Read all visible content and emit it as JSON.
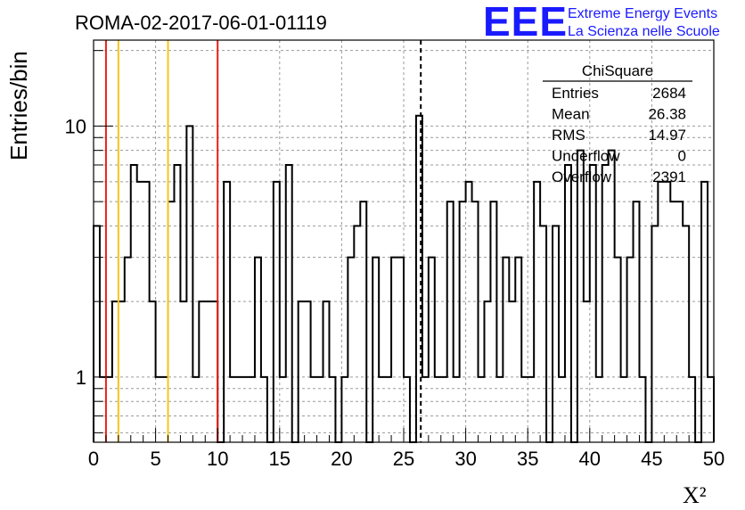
{
  "chart_data": {
    "type": "histogram",
    "title": "ROMA-02-2017-06-01-01119",
    "ylabel": "Entries/bin",
    "xlabel": "X²",
    "xlim": [
      0,
      50
    ],
    "ylim": [
      0.55,
      22
    ],
    "yscale": "log",
    "grid": true,
    "bin_width": 0.5,
    "x_ticks": [
      "0",
      "5",
      "10",
      "15",
      "20",
      "25",
      "30",
      "35",
      "40",
      "45",
      "50"
    ],
    "y_ticks": [
      "1",
      "10"
    ],
    "values": [
      4,
      1,
      1,
      2,
      2,
      3,
      7,
      6,
      6,
      2,
      1,
      1,
      5,
      7,
      2,
      10,
      1,
      2,
      2,
      2,
      0,
      6,
      1,
      1,
      1,
      1,
      3,
      1,
      0,
      6,
      1,
      7,
      0,
      2,
      2,
      1,
      1,
      2,
      1,
      0,
      1,
      3,
      4,
      5,
      0,
      3,
      1,
      1,
      3,
      3,
      1,
      0,
      11,
      1,
      3,
      1,
      1,
      5,
      1,
      5,
      6,
      5,
      1,
      2,
      5,
      1,
      3,
      2,
      3,
      1,
      1,
      6,
      4,
      0,
      4,
      1,
      7,
      0,
      8,
      2,
      7,
      1,
      7,
      8,
      3,
      1,
      3,
      5,
      1,
      0,
      4,
      6,
      6,
      5,
      5,
      4,
      1,
      0,
      6,
      1
    ],
    "stats_box": {
      "title": "ChiSquare",
      "rows": [
        {
          "label": "Entries",
          "value": "2684"
        },
        {
          "label": "Mean",
          "value": "26.38"
        },
        {
          "label": "RMS",
          "value": "14.97"
        },
        {
          "label": "Underflow",
          "value": "0"
        },
        {
          "label": "Overflow",
          "value": "2391"
        }
      ]
    },
    "vertical_lines": [
      {
        "x": 1,
        "color": "#e8201a",
        "style": "solid"
      },
      {
        "x": 2,
        "color": "#f5c518",
        "style": "solid"
      },
      {
        "x": 6,
        "color": "#f5c518",
        "style": "solid"
      },
      {
        "x": 10,
        "color": "#e8201a",
        "style": "solid"
      },
      {
        "x": 26.38,
        "color": "#000000",
        "style": "dashed"
      }
    ]
  },
  "logo": {
    "big": "EEE",
    "line1": "Extreme Energy Events",
    "line2": "La Scienza nelle Scuole"
  }
}
